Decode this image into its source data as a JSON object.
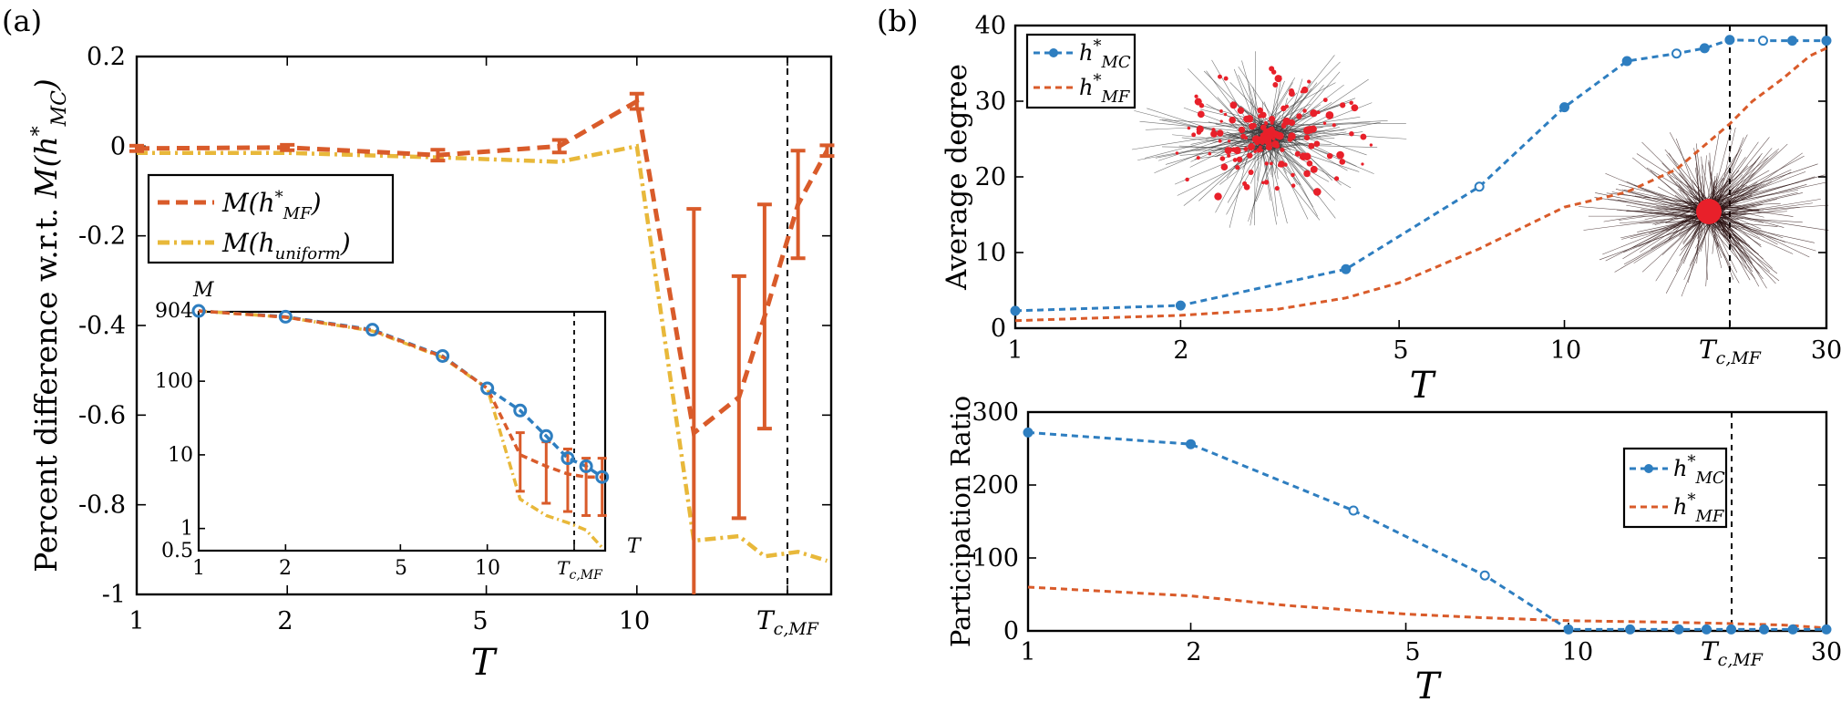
{
  "colors": {
    "mc": "#2e7ec0",
    "mf": "#d95b2a",
    "uniform": "#e8b83a",
    "node": "#e8202a",
    "edge": "#3a3a3a",
    "vline": "#000000"
  },
  "chart_data": [
    {
      "panel": "(a)",
      "type": "line",
      "x_scale": "log",
      "xlabel": "T",
      "ylabel": "Percent difference w.r.t. M(h*_MC)",
      "xlim": [
        1,
        28
      ],
      "ylim": [
        -1,
        0.2
      ],
      "xticks": [
        1,
        2,
        5,
        10,
        20
      ],
      "xtick_labels": [
        "1",
        "2",
        "5",
        "10",
        "T_c,MF"
      ],
      "yticks": [
        0.2,
        0,
        -0.2,
        -0.4,
        -0.6,
        -0.8,
        -1
      ],
      "ytick_labels": [
        "0.2",
        "0",
        "-0.2",
        "-0.4",
        "-0.6",
        "-0.8",
        "-1"
      ],
      "vline_x": 20,
      "legend": [
        "M(h*_MF)",
        "M(h_uniform)"
      ],
      "series": [
        {
          "name": "M(h*_MF)",
          "color_key": "mf",
          "style": "dashed",
          "x": [
            1,
            2,
            4,
            7,
            10,
            13,
            16,
            18,
            21,
            24
          ],
          "y": [
            -0.005,
            -0.003,
            -0.02,
            0.0,
            0.1,
            -0.64,
            -0.56,
            -0.38,
            -0.13,
            -0.01
          ],
          "err": [
            0.006,
            0.006,
            0.012,
            0.014,
            0.017,
            0.5,
            0.27,
            0.25,
            0.12,
            0.012
          ]
        },
        {
          "name": "M(h_uniform)",
          "color_key": "uniform",
          "style": "dash-dot",
          "x": [
            1,
            2,
            4,
            7,
            10,
            13,
            16,
            18,
            21,
            24
          ],
          "y": [
            -0.015,
            -0.015,
            -0.025,
            -0.035,
            0.0,
            -0.88,
            -0.87,
            -0.915,
            -0.905,
            -0.925
          ]
        }
      ],
      "inset": {
        "type": "line",
        "x_scale": "log",
        "y_scale": "log",
        "ylabel": "M",
        "xlabel": "T",
        "xlim": [
          1,
          28
        ],
        "ylim": [
          0.5,
          1000
        ],
        "xticks": [
          1,
          2,
          5,
          10,
          20
        ],
        "xtick_labels": [
          "1",
          "2",
          "5",
          "10",
          "T_c,MF"
        ],
        "yticks": [
          904,
          100,
          10,
          1,
          0.5
        ],
        "ytick_labels": [
          "904",
          "100",
          "10",
          "1",
          "0.5"
        ],
        "vline_x": 20,
        "series": [
          {
            "name": "h*_MC",
            "color_key": "mc",
            "x": [
              1,
              2,
              4,
              7,
              10,
              13,
              16,
              19,
              22,
              25
            ],
            "y": [
              900,
              750,
              500,
              220,
              80,
              40,
              18,
              9,
              7,
              5
            ]
          },
          {
            "name": "h*_MF",
            "color_key": "mf",
            "x": [
              1,
              2,
              4,
              7,
              10,
              13,
              16,
              19,
              22,
              25
            ],
            "y": [
              900,
              740,
              490,
              215,
              80,
              10,
              7,
              5.5,
              5,
              5
            ],
            "err_lo": [
              1,
              1,
              1,
              1,
              1,
              3.2,
              2.2,
              1.7,
              1.5,
              1.5
            ],
            "err_hi": [
              1,
              1,
              1,
              1,
              1,
              20,
              15,
              12,
              9,
              9
            ]
          },
          {
            "name": "h_uniform",
            "color_key": "uniform",
            "x": [
              1,
              2,
              4,
              7,
              10,
              13,
              16,
              19,
              22,
              25
            ],
            "y": [
              900,
              740,
              480,
              210,
              80,
              2.5,
              1.5,
              1.2,
              0.95,
              0.55
            ]
          }
        ]
      }
    },
    {
      "panel": "(b)",
      "type": "line",
      "x_scale": "log",
      "xlabel": "T",
      "ylabel": "Average degree",
      "xlim": [
        1,
        30
      ],
      "ylim": [
        0,
        40
      ],
      "xticks": [
        1,
        2,
        5,
        10,
        20,
        30
      ],
      "xtick_labels": [
        "1",
        "2",
        "5",
        "10",
        "T_c,MF",
        "30"
      ],
      "yticks": [
        0,
        10,
        20,
        30,
        40
      ],
      "ytick_labels": [
        "0",
        "10",
        "20",
        "30",
        "40"
      ],
      "vline_x": 20,
      "legend": [
        "h*_MC",
        "h*_MF"
      ],
      "series": [
        {
          "name": "h*_MC",
          "color_key": "mc",
          "style": "dashed-markers",
          "x": [
            1,
            2,
            4,
            7,
            10,
            13,
            16,
            18,
            20,
            23,
            26,
            30
          ],
          "y": [
            2.3,
            3,
            7.8,
            18.7,
            29.2,
            35.3,
            36.3,
            37,
            38.1,
            38,
            38,
            38
          ]
        },
        {
          "name": "h*_MF",
          "color_key": "mf",
          "style": "dashed",
          "x": [
            1,
            2,
            3,
            4,
            5,
            7,
            10,
            13,
            16,
            20,
            22,
            25,
            28,
            30
          ],
          "y": [
            1,
            1.7,
            2.5,
            4,
            6,
            10.5,
            16,
            18,
            21,
            27,
            30,
            33,
            36,
            37
          ]
        }
      ]
    },
    {
      "panel": "(b)-bottom",
      "type": "line",
      "x_scale": "log",
      "xlabel": "T",
      "ylabel": "Participation Ratio",
      "xlim": [
        1,
        30
      ],
      "ylim": [
        0,
        300
      ],
      "xticks": [
        1,
        2,
        5,
        10,
        20,
        30
      ],
      "xtick_labels": [
        "1",
        "2",
        "5",
        "10",
        "T_c,MF",
        "30"
      ],
      "yticks": [
        0,
        100,
        200,
        300
      ],
      "ytick_labels": [
        "0",
        "100",
        "200",
        "300"
      ],
      "vline_x": 20,
      "legend": [
        "h*_MC",
        "h*_MF"
      ],
      "series": [
        {
          "name": "h*_MC",
          "color_key": "mc",
          "style": "dashed-markers",
          "x": [
            1,
            2,
            4,
            7,
            10,
            13,
            16,
            18,
            20,
            23,
            26,
            30
          ],
          "y": [
            272,
            256,
            165,
            76,
            2,
            2,
            2,
            2,
            2,
            2,
            2,
            2
          ]
        },
        {
          "name": "h*_MF",
          "color_key": "mf",
          "style": "dashed",
          "x": [
            1,
            2,
            3,
            5,
            7,
            10,
            15,
            20,
            25,
            30
          ],
          "y": [
            60,
            48,
            35,
            23,
            18,
            14,
            12,
            10,
            8,
            4
          ]
        }
      ]
    }
  ],
  "labels": {
    "panel_a": "(a)",
    "panel_b": "(b)",
    "a_ylabel": "Percent difference w.r.t. M(h*MC)",
    "a_xlabel": "T",
    "a_inset_ylabel": "M",
    "a_inset_xlabel": "T",
    "a_legend_1": "M(h*MF)",
    "a_legend_2": "M(huniform)",
    "b_top_ylabel": "Average degree",
    "b_top_xlabel": "T",
    "b_bottom_ylabel": "Participation Ratio",
    "b_bottom_xlabel": "T",
    "b_legend_mc": "h*MC",
    "b_legend_mf": "h*MF",
    "tc_label": "Tc,MF",
    "xtick_1": "1",
    "xtick_2": "2",
    "xtick_5": "5",
    "xtick_10": "10",
    "xtick_30": "30"
  }
}
